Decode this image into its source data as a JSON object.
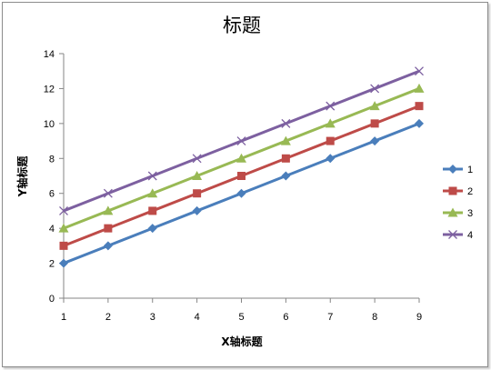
{
  "chart_data": {
    "type": "line",
    "title": "标题",
    "xlabel": "X轴标题",
    "ylabel": "Y轴标题",
    "x": [
      1,
      2,
      3,
      4,
      5,
      6,
      7,
      8,
      9
    ],
    "ylim": [
      0,
      14
    ],
    "yticks": [
      0,
      2,
      4,
      6,
      8,
      10,
      12,
      14
    ],
    "grid": false,
    "legend_position": "right",
    "series": [
      {
        "name": "1",
        "color": "#4a7ebb",
        "marker": "diamond",
        "values": [
          2,
          3,
          4,
          5,
          6,
          7,
          8,
          9,
          10
        ]
      },
      {
        "name": "2",
        "color": "#be4b48",
        "marker": "square",
        "values": [
          3,
          4,
          5,
          6,
          7,
          8,
          9,
          10,
          11
        ]
      },
      {
        "name": "3",
        "color": "#98b954",
        "marker": "triangle",
        "values": [
          4,
          5,
          6,
          7,
          8,
          9,
          10,
          11,
          12
        ]
      },
      {
        "name": "4",
        "color": "#7d60a0",
        "marker": "x",
        "values": [
          5,
          6,
          7,
          8,
          9,
          10,
          11,
          12,
          13
        ]
      }
    ]
  }
}
